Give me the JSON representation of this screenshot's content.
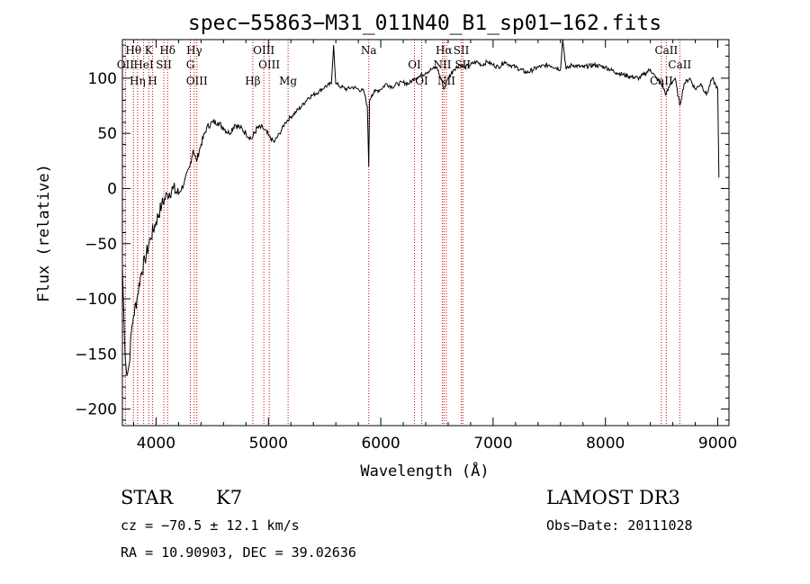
{
  "chart_data": {
    "type": "line",
    "title": "spec−55863−M31_011N40_B1_sp01−162.fits",
    "xlabel": "Wavelength (Å)",
    "ylabel": "Flux (relative)",
    "xlim": [
      3700,
      9100
    ],
    "ylim": [
      -215,
      135
    ],
    "xticks": [
      4000,
      5000,
      6000,
      7000,
      8000,
      9000
    ],
    "yticks": [
      -200,
      -150,
      -100,
      -50,
      0,
      50,
      100
    ],
    "grid": false,
    "series": [
      {
        "x": [
          3700,
          3720,
          3740,
          3760,
          3780,
          3800,
          3830,
          3860,
          3900,
          3950,
          4000,
          4050,
          4100,
          4150,
          4200,
          4250,
          4300,
          4330,
          4360,
          4400,
          4450,
          4500,
          4550,
          4600,
          4650,
          4700,
          4750,
          4800,
          4850,
          4900,
          4950,
          5000,
          5050,
          5100,
          5150,
          5200,
          5250,
          5300,
          5350,
          5400,
          5450,
          5500,
          5560,
          5580,
          5600,
          5650,
          5700,
          5750,
          5800,
          5850,
          5880,
          5893,
          5900,
          5920,
          5950,
          6000,
          6050,
          6100,
          6150,
          6200,
          6250,
          6300,
          6350,
          6400,
          6450,
          6500,
          6550,
          6563,
          6600,
          6650,
          6700,
          6750,
          6800,
          6850,
          6900,
          6950,
          7000,
          7050,
          7100,
          7150,
          7200,
          7300,
          7400,
          7500,
          7600,
          7620,
          7650,
          7700,
          7800,
          7900,
          8000,
          8100,
          8200,
          8300,
          8400,
          8450,
          8500,
          8540,
          8580,
          8620,
          8662,
          8700,
          8750,
          8800,
          8850,
          8900,
          8950,
          9000,
          9010
        ],
        "y": [
          -70,
          -140,
          -170,
          -160,
          -130,
          -115,
          -100,
          -80,
          -65,
          -45,
          -30,
          -15,
          -5,
          0,
          -5,
          5,
          20,
          35,
          25,
          40,
          55,
          60,
          60,
          55,
          50,
          58,
          55,
          50,
          45,
          55,
          55,
          48,
          42,
          50,
          60,
          65,
          70,
          75,
          82,
          85,
          88,
          92,
          95,
          130,
          95,
          92,
          90,
          92,
          90,
          88,
          75,
          20,
          80,
          85,
          88,
          90,
          95,
          92,
          95,
          96,
          95,
          100,
          102,
          105,
          108,
          110,
          95,
          90,
          100,
          108,
          112,
          110,
          112,
          115,
          112,
          115,
          112,
          110,
          115,
          112,
          110,
          105,
          110,
          112,
          108,
          135,
          108,
          112,
          110,
          112,
          110,
          105,
          102,
          100,
          108,
          100,
          95,
          85,
          95,
          100,
          75,
          95,
          100,
          90,
          95,
          85,
          100,
          90,
          10
        ]
      }
    ],
    "lines": [
      {
        "name": "Hθ",
        "x": 3798
      },
      {
        "name": "OII",
        "x": 3727
      },
      {
        "name": "Hη",
        "x": 3835
      },
      {
        "name": "K",
        "x": 3934
      },
      {
        "name": "HeI",
        "x": 3889
      },
      {
        "name": "H",
        "x": 3969
      },
      {
        "name": "Hδ",
        "x": 4102
      },
      {
        "name": "SII",
        "x": 4069
      },
      {
        "name": "OIII",
        "x": 4363
      },
      {
        "name": "Hγ",
        "x": 4340
      },
      {
        "name": "G",
        "x": 4305
      },
      {
        "name": "Hβ",
        "x": 4861
      },
      {
        "name": "OIII",
        "x": 4959
      },
      {
        "name": "OIII",
        "x": 5007
      },
      {
        "name": "Mg",
        "x": 5175
      },
      {
        "name": "Na",
        "x": 5893
      },
      {
        "name": "OI",
        "x": 6300
      },
      {
        "name": "OI",
        "x": 6364
      },
      {
        "name": "Hα",
        "x": 6563
      },
      {
        "name": "NII",
        "x": 6548
      },
      {
        "name": "NII",
        "x": 6584
      },
      {
        "name": "SII",
        "x": 6717
      },
      {
        "name": "SII",
        "x": 6731
      },
      {
        "name": "CaII",
        "x": 8498
      },
      {
        "name": "CaII",
        "x": 8542
      },
      {
        "name": "CaII",
        "x": 8662
      }
    ]
  },
  "info": {
    "class": "STAR",
    "subclass": "K7",
    "survey": "LAMOST DR3",
    "cz": "cz = −70.5 ± 12.1 km/s",
    "obs_date": "Obs−Date: 20111028",
    "radec": "RA =  10.90903, DEC =  39.02636"
  }
}
